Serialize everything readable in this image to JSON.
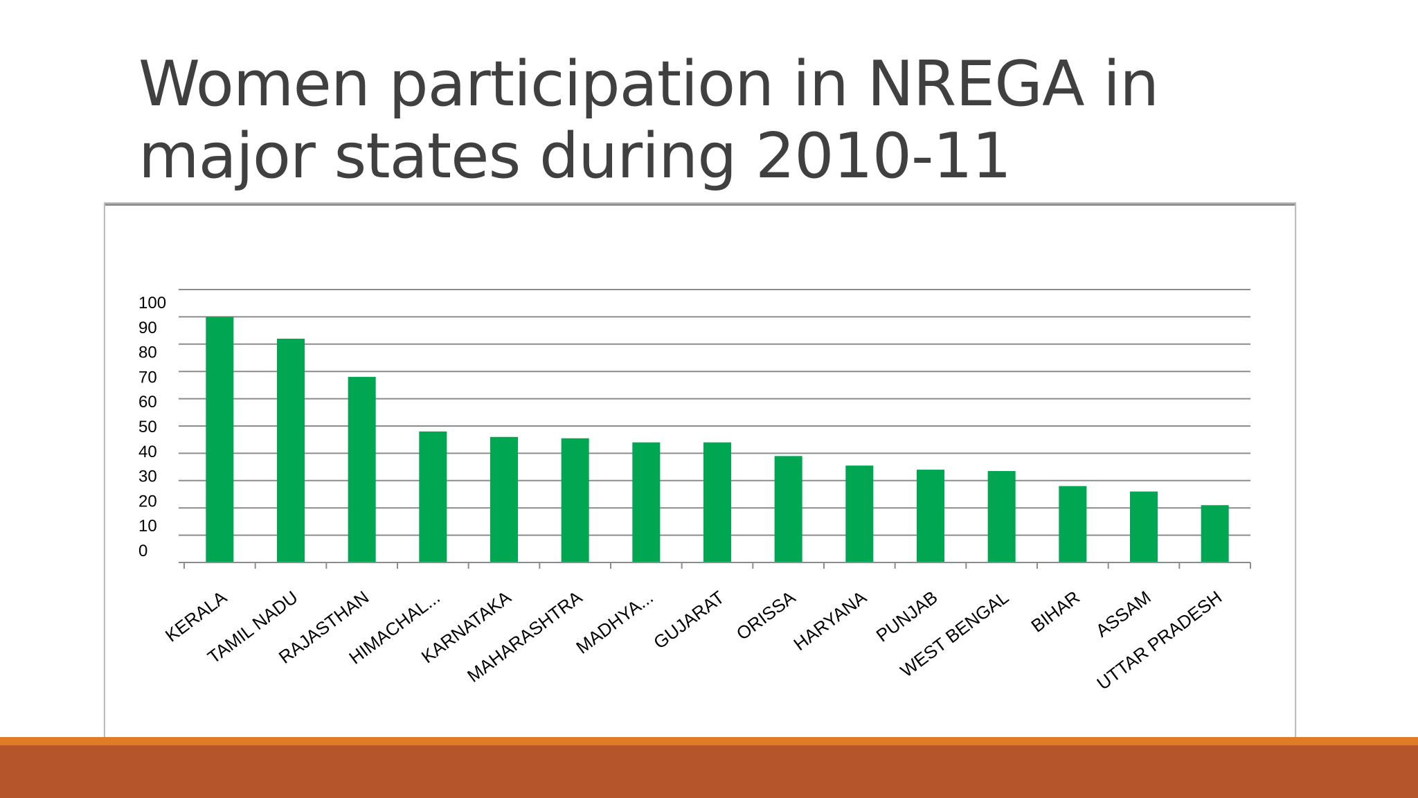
{
  "slide": {
    "title": "Women participation in NREGA in major states during 2010-11"
  },
  "colors": {
    "title": "#404040",
    "bar": "#00a651",
    "grid": "#8c8c8c",
    "footer_orange": "#e07b28",
    "footer_rust": "#b5552b"
  },
  "chart_data": {
    "type": "bar",
    "title": "",
    "xlabel": "",
    "ylabel": "",
    "ylim": [
      0,
      100
    ],
    "yticks": [
      0,
      10,
      20,
      30,
      40,
      50,
      60,
      70,
      80,
      90,
      100
    ],
    "grid": true,
    "legend": "none",
    "categories": [
      "KERALA",
      "TAMIL NADU",
      "RAJASTHAN",
      "HIMACHAL...",
      "KARNATAKA",
      "MAHARASHTRA",
      "MADHYA...",
      "GUJARAT",
      "ORISSA",
      "HARYANA",
      "PUNJAB",
      "WEST BENGAL",
      "BIHAR",
      "ASSAM",
      "UTTAR PRADESH"
    ],
    "values": [
      90,
      82,
      68,
      48,
      46,
      45.5,
      44,
      44,
      39,
      35.5,
      34,
      33.5,
      28,
      26,
      21
    ]
  }
}
